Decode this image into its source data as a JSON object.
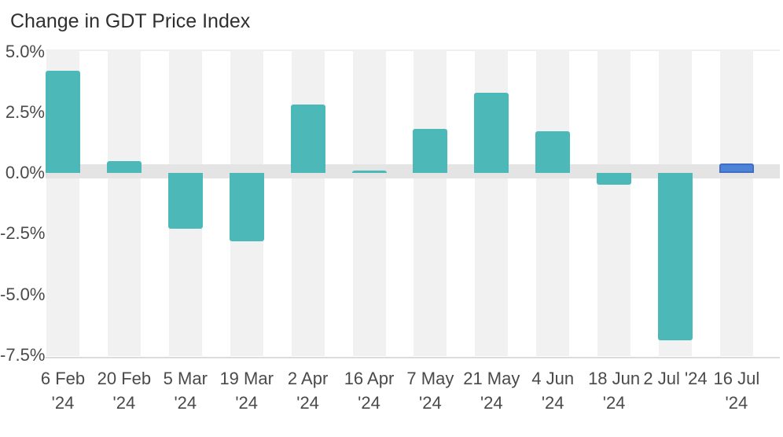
{
  "title": "Change in GDT Price Index",
  "colors": {
    "bar_default": "#4cb8b8",
    "bar_highlight": "#4d83d6",
    "bar_highlight_border": "#3f6fc4",
    "column_stripe": "#f1f1f1",
    "zero_band": "#e4e4e4",
    "axis_line": "#dcdcdc",
    "top_gridline": "#eeeeee",
    "axis_text": "#4a4a4a",
    "title_text": "#303030"
  },
  "chart_data": {
    "type": "bar",
    "title": "Change in GDT Price Index",
    "unit": "%",
    "categories": [
      "6 Feb '24",
      "20 Feb '24",
      "5 Mar '24",
      "19 Mar '24",
      "2 Apr '24",
      "16 Apr '24",
      "7 May '24",
      "21 May '24",
      "4 Jun '24",
      "18 Jun '24",
      "2 Jul '24",
      "16 Jul '24"
    ],
    "x_tick_label_lines": [
      [
        "6 Feb",
        "'24"
      ],
      [
        "20 Feb",
        "'24"
      ],
      [
        "5 Mar",
        "'24"
      ],
      [
        "19 Mar",
        "'24"
      ],
      [
        "2 Apr",
        "'24"
      ],
      [
        "16 Apr",
        "'24"
      ],
      [
        "7 May",
        "'24"
      ],
      [
        "21 May",
        "'24"
      ],
      [
        "4 Jun",
        "'24"
      ],
      [
        "18 Jun",
        "'24"
      ],
      [
        "2 Jul '24"
      ],
      [
        "16 Jul",
        "'24"
      ]
    ],
    "values": [
      4.2,
      0.5,
      -2.3,
      -2.8,
      2.8,
      0.1,
      1.8,
      3.3,
      1.7,
      -0.5,
      -6.9,
      0.4
    ],
    "bar_color_roles": [
      "default",
      "default",
      "default",
      "default",
      "default",
      "default",
      "default",
      "default",
      "default",
      "default",
      "default",
      "highlight"
    ],
    "y_ticks": [
      {
        "label": "5.0%",
        "value": 5.0
      },
      {
        "label": "2.5%",
        "value": 2.5
      },
      {
        "label": "0.0%",
        "value": 0.0
      },
      {
        "label": "-2.5%",
        "value": -2.5
      },
      {
        "label": "-5.0%",
        "value": -5.0
      },
      {
        "label": "-7.5%",
        "value": -7.5
      }
    ],
    "ylim": [
      -7.5,
      5.0
    ],
    "xlabel": "",
    "ylabel": "",
    "legend": "none",
    "grid": "zero-band and per-column background stripes, no intermediate horizontal gridlines"
  }
}
